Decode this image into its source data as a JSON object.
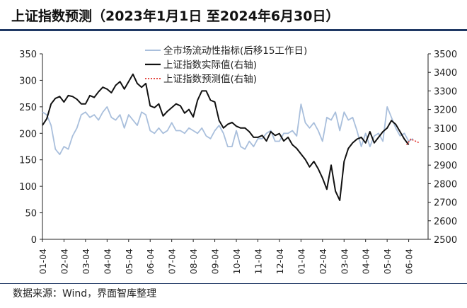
{
  "title": "上证指数预测（2023年1月1日 至2024年6月30日）",
  "source": "数据来源：Wind，界面智库整理",
  "colors": {
    "liquidity": "#a9bfdc",
    "actual": "#111111",
    "forecast": "#e0302a",
    "rule": "#1f3864"
  },
  "chart_data": {
    "type": "line",
    "xlabel": "",
    "ylabel_left": "",
    "ylabel_right": "",
    "x_tick_labels": [
      "01-04",
      "02-04",
      "03-04",
      "04-04",
      "05-04",
      "06-04",
      "07-04",
      "08-04",
      "09-04",
      "10-04",
      "11-04",
      "12-04",
      "01-04",
      "02-04",
      "03-04",
      "04-04",
      "05-04",
      "06-04"
    ],
    "y_left_ticks": [
      "0",
      "50",
      "100",
      "150",
      "200",
      "250",
      "300",
      "350"
    ],
    "y_right_ticks": [
      "2500",
      "2600",
      "2700",
      "2800",
      "2900",
      "3000",
      "3100",
      "3200",
      "3300",
      "3400",
      "3500"
    ],
    "ylim_left": [
      0,
      350
    ],
    "ylim_right": [
      2500,
      3500
    ],
    "legend_position": "top-center",
    "series": [
      {
        "name": "全市场流动性指标(后移15工作日)",
        "axis": "left",
        "style": "solid",
        "x": [
          0,
          0.2,
          0.4,
          0.6,
          0.8,
          1.0,
          1.2,
          1.4,
          1.6,
          1.8,
          2.0,
          2.2,
          2.4,
          2.6,
          2.8,
          3.0,
          3.2,
          3.4,
          3.6,
          3.8,
          4.0,
          4.2,
          4.4,
          4.6,
          4.8,
          5.0,
          5.2,
          5.4,
          5.6,
          5.8,
          6.0,
          6.2,
          6.4,
          6.6,
          6.8,
          7.0,
          7.2,
          7.4,
          7.6,
          7.8,
          8.0,
          8.2,
          8.4,
          8.6,
          8.8,
          9.0,
          9.2,
          9.4,
          9.6,
          9.8,
          10.0,
          10.2,
          10.4,
          10.6,
          10.8,
          11.0,
          11.2,
          11.4,
          11.6,
          11.8,
          12.0,
          12.2,
          12.4,
          12.6,
          12.8,
          13.0,
          13.2,
          13.4,
          13.6,
          13.8,
          14.0,
          14.2,
          14.4,
          14.6,
          14.8,
          15.0,
          15.2,
          15.4,
          15.6,
          15.8,
          16.0,
          16.2,
          16.4,
          16.6,
          16.8,
          17.0,
          17.2
        ],
        "values": [
          240,
          235,
          215,
          170,
          160,
          175,
          170,
          195,
          210,
          235,
          240,
          230,
          235,
          225,
          240,
          250,
          230,
          225,
          235,
          210,
          235,
          225,
          215,
          240,
          235,
          205,
          200,
          210,
          200,
          205,
          220,
          205,
          205,
          200,
          210,
          205,
          200,
          210,
          195,
          190,
          205,
          215,
          200,
          175,
          175,
          205,
          175,
          170,
          185,
          175,
          190,
          190,
          200,
          205,
          185,
          185,
          200,
          200,
          205,
          195,
          255,
          220,
          210,
          220,
          205,
          185,
          230,
          225,
          240,
          205,
          240,
          225,
          230,
          205,
          175,
          200,
          175,
          195,
          200,
          185,
          250,
          230,
          210,
          195,
          200,
          185,
          190
        ]
      },
      {
        "name": "上证指数实际值(右轴)",
        "axis": "right",
        "style": "solid",
        "x": [
          0,
          0.2,
          0.4,
          0.6,
          0.8,
          1.0,
          1.2,
          1.4,
          1.6,
          1.8,
          2.0,
          2.2,
          2.4,
          2.6,
          2.8,
          3.0,
          3.2,
          3.4,
          3.6,
          3.8,
          4.0,
          4.2,
          4.4,
          4.6,
          4.8,
          5.0,
          5.2,
          5.4,
          5.6,
          5.8,
          6.0,
          6.2,
          6.4,
          6.6,
          6.8,
          7.0,
          7.2,
          7.4,
          7.6,
          7.8,
          8.0,
          8.2,
          8.4,
          8.6,
          8.8,
          9.0,
          9.2,
          9.4,
          9.6,
          9.8,
          10.0,
          10.2,
          10.4,
          10.6,
          10.8,
          11.0,
          11.2,
          11.4,
          11.6,
          11.8,
          12.0,
          12.2,
          12.4,
          12.6,
          12.8,
          13.0,
          13.2,
          13.4,
          13.6,
          13.8,
          14.0,
          14.2,
          14.4,
          14.6,
          14.8,
          15.0,
          15.2,
          15.4,
          15.6,
          15.8,
          16.0,
          16.2,
          16.4,
          16.6,
          16.8,
          17.0
        ],
        "values": [
          3115,
          3150,
          3230,
          3260,
          3270,
          3240,
          3275,
          3270,
          3255,
          3230,
          3230,
          3275,
          3265,
          3295,
          3320,
          3310,
          3290,
          3330,
          3350,
          3310,
          3350,
          3390,
          3340,
          3320,
          3340,
          3220,
          3210,
          3230,
          3165,
          3190,
          3210,
          3230,
          3220,
          3180,
          3200,
          3160,
          3250,
          3300,
          3300,
          3250,
          3240,
          3140,
          3100,
          3120,
          3130,
          3110,
          3100,
          3100,
          3080,
          3050,
          3050,
          3060,
          3030,
          3080,
          3060,
          3070,
          3030,
          3050,
          3010,
          2990,
          2960,
          2930,
          2890,
          2920,
          2880,
          2830,
          2770,
          2900,
          2760,
          2710,
          2920,
          2990,
          3020,
          3040,
          3050,
          3020,
          3080,
          3020,
          3050,
          3080,
          3100,
          3140,
          3120,
          3080,
          3040,
          3010
        ]
      },
      {
        "name": "上证指数预测值(右轴)",
        "axis": "right",
        "style": "dotted",
        "x": [
          16.9,
          17.1,
          17.3,
          17.5
        ],
        "values": [
          3010,
          3040,
          3030,
          3020
        ]
      }
    ]
  }
}
